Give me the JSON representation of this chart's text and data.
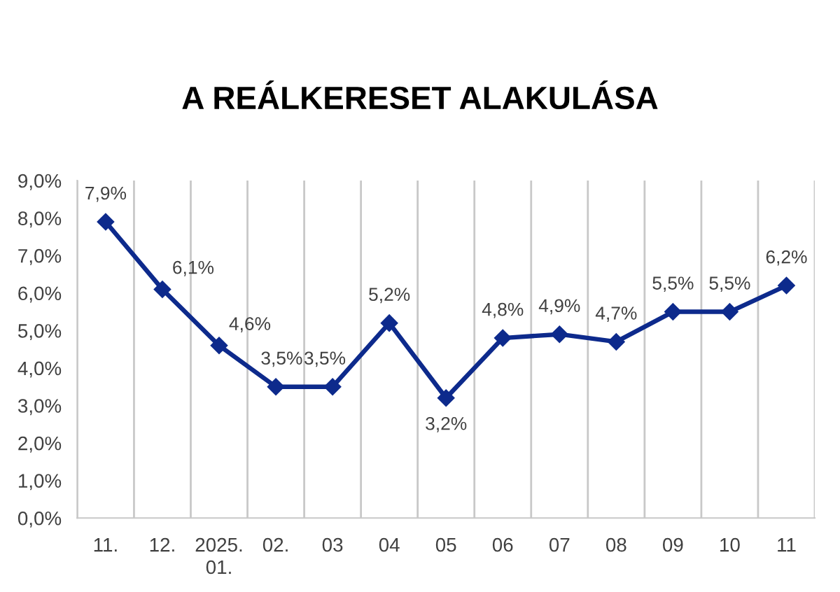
{
  "chart_data": {
    "type": "line",
    "title": "A REÁLKERESET ALAKULÁSA",
    "categories": [
      "11.",
      "12.",
      "2025. 01.",
      "02.",
      "03",
      "04",
      "05",
      "06",
      "07",
      "08",
      "09",
      "10",
      "11"
    ],
    "series": [
      {
        "color": "#0d2a8c",
        "values": [
          7.9,
          6.1,
          4.6,
          3.5,
          3.5,
          5.2,
          3.2,
          4.8,
          4.9,
          4.7,
          5.5,
          5.5,
          6.2
        ],
        "value_labels": [
          "7,9%",
          "6,1%",
          "4,6%",
          "3,5%",
          "3,5%",
          "5,2%",
          "3,2%",
          "4,8%",
          "4,9%",
          "4,7%",
          "5,5%",
          "5,5%",
          "6,2%"
        ]
      }
    ],
    "ylim": [
      0,
      9
    ],
    "yticks": [
      {
        "value": 0,
        "label": "0,0%"
      },
      {
        "value": 1,
        "label": "1,0%"
      },
      {
        "value": 2,
        "label": "2,0%"
      },
      {
        "value": 3,
        "label": "3,0%"
      },
      {
        "value": 4,
        "label": "4,0%"
      },
      {
        "value": 5,
        "label": "5,0%"
      },
      {
        "value": 6,
        "label": "6,0%"
      },
      {
        "value": 7,
        "label": "7,0%"
      },
      {
        "value": 8,
        "label": "8,0%"
      },
      {
        "value": 9,
        "label": "9,0%"
      }
    ],
    "grid": "x",
    "marker": "diamond",
    "line_style": "solid"
  }
}
